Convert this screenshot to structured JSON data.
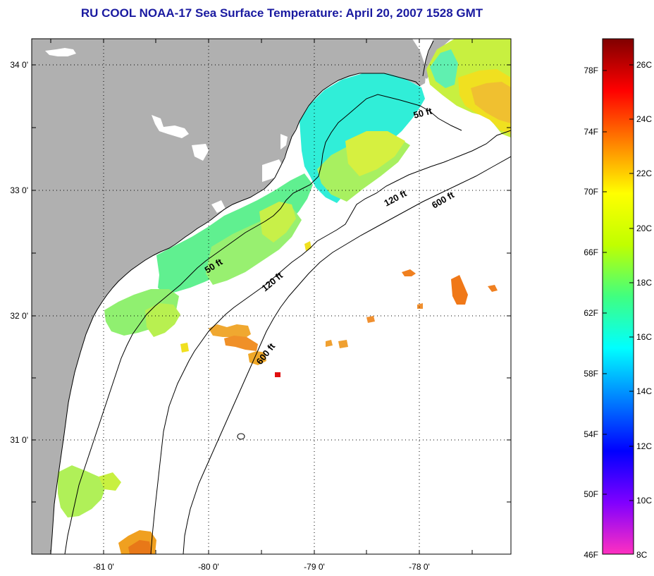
{
  "title": "RU COOL  NOAA-17  Sea Surface Temperature:  April 20, 2007 1528 GMT",
  "map": {
    "x_ticks": [
      "-81 0'",
      "-80 0'",
      "-79 0'",
      "-78 0'"
    ],
    "y_ticks": [
      "34 0'",
      "33 0'",
      "32 0'",
      "31 0'"
    ],
    "contour_labels": {
      "c50_north": "50 ft",
      "c50_south": "50 ft",
      "c120_north": "120 ft",
      "c120_south": "120 ft",
      "c600_north": "600 ft",
      "c600_south": "600 ft"
    },
    "colors": {
      "land": "#b0b0b0",
      "ocean_nodata": "#ffffff",
      "coast": "#000000"
    }
  },
  "colorbar": {
    "fahrenheit_labels": [
      "78F",
      "74F",
      "70F",
      "66F",
      "62F",
      "58F",
      "54F",
      "50F",
      "46F"
    ],
    "celsius_labels": [
      "26C",
      "24C",
      "22C",
      "20C",
      "18C",
      "16C",
      "14C",
      "12C",
      "10C",
      "8C"
    ],
    "range_c": [
      8,
      27
    ],
    "colors": [
      "#ff30c0",
      "#8000ff",
      "#0000ff",
      "#0080ff",
      "#00ffff",
      "#40ff80",
      "#c0ff00",
      "#ffff00",
      "#ff8000",
      "#ff0000",
      "#800000"
    ]
  }
}
